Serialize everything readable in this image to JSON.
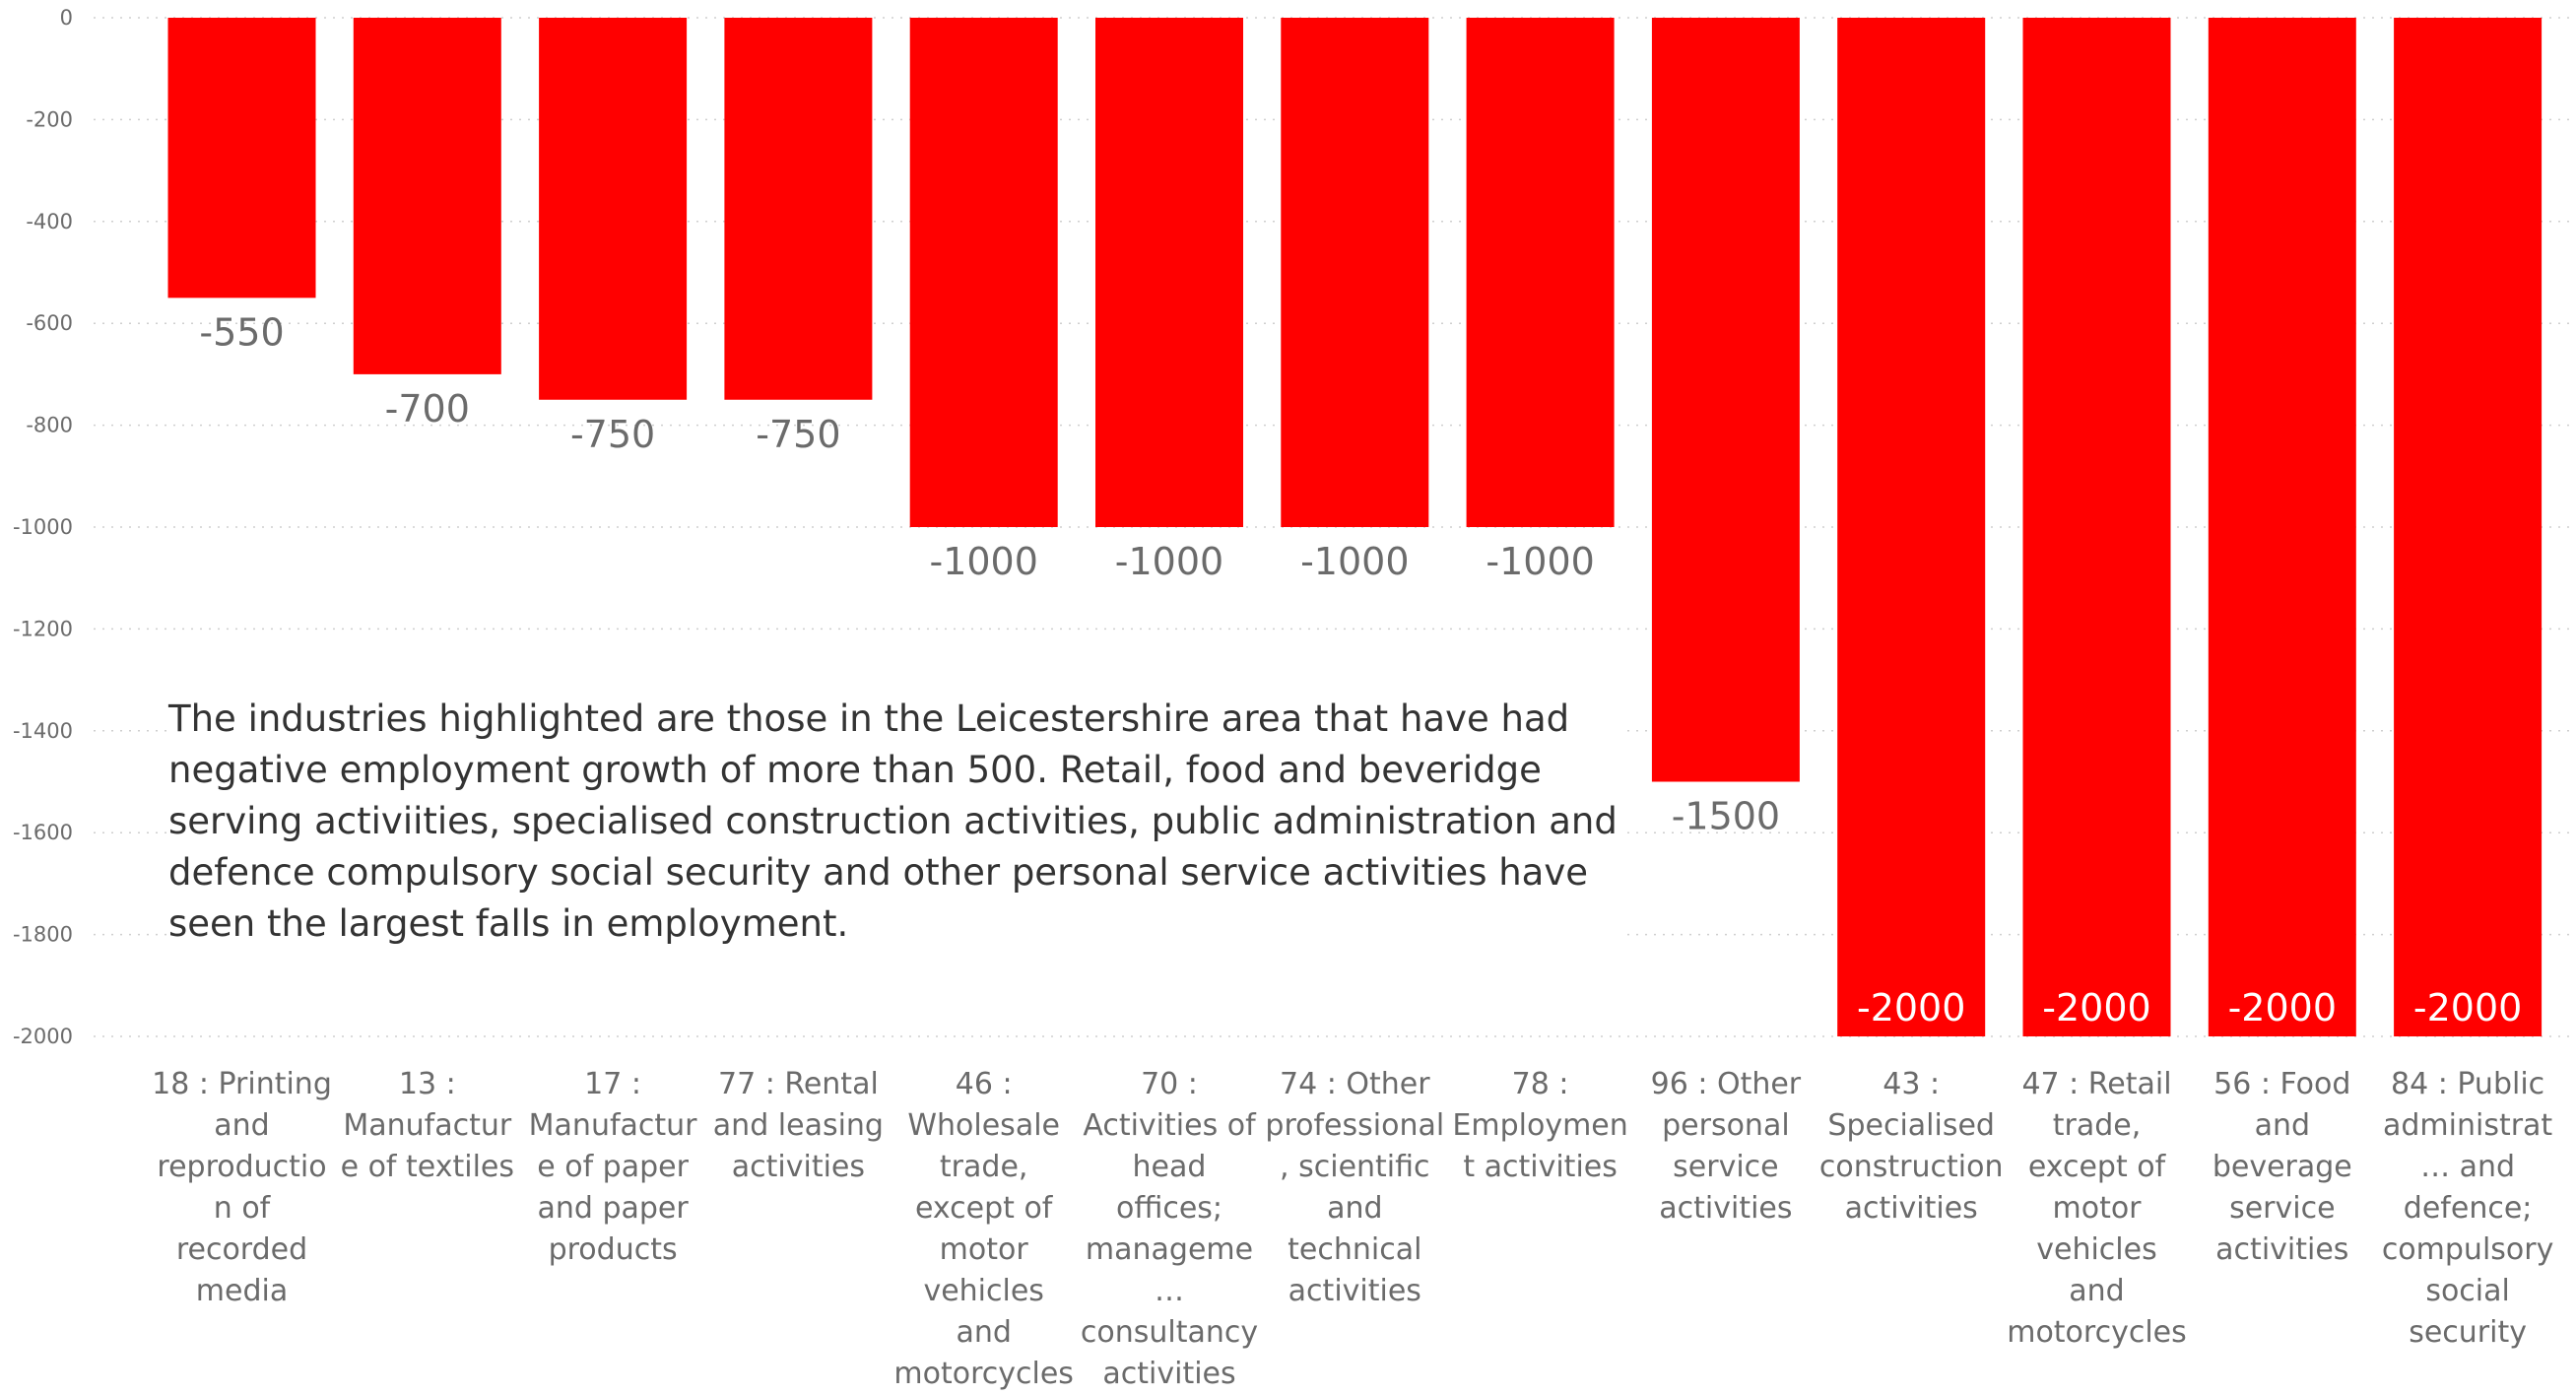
{
  "chart_data": {
    "type": "bar",
    "categories": [
      "18 : Printing and reproduction of recorded media",
      "13 : Manufacture of textiles",
      "17 : Manufacture of paper and paper products",
      "77 : Rental and leasing activities",
      "46 : Wholesale trade, except of motor vehicles and motorcycles",
      "70 : Activities of head offices; manageme… consultancy activities",
      "74 : Other professional, scientific and technical activities",
      "78 : Employment activities",
      "96 : Other personal service activities",
      "43 : Specialised construction activities",
      "47 : Retail trade, except of motor vehicles and motorcycles",
      "56 : Food and beverage service activities",
      "84 : Public administrat… and defence; compulsory social security"
    ],
    "values": [
      -550,
      -700,
      -750,
      -750,
      -1000,
      -1000,
      -1000,
      -1000,
      -1500,
      -2000,
      -2000,
      -2000,
      -2000
    ],
    "value_labels": [
      "-550",
      "-700",
      "-750",
      "-750",
      "-1000",
      "-1000",
      "-1000",
      "-1000",
      "-1500",
      "-2000",
      "-2000",
      "-2000",
      "-2000"
    ],
    "ylim": [
      -2000,
      0
    ],
    "yticks": [
      0,
      -200,
      -400,
      -600,
      -800,
      -1000,
      -1200,
      -1400,
      -1600,
      -1800,
      -2000
    ],
    "grid": true,
    "title": "",
    "xlabel": "",
    "ylabel": "",
    "bar_color": "#ff0000",
    "label_color_outside": "#6b6b6b",
    "label_color_inside": "#ffffff",
    "annotation": "The industries highlighted are those in the Leicestershire area that have had negative employment growth of more than 500.  Retail, food and beveridge serving activiities, specialised construction activities, public administration and defence compulsory social security and other personal service activities have seen the largest falls in employment."
  }
}
